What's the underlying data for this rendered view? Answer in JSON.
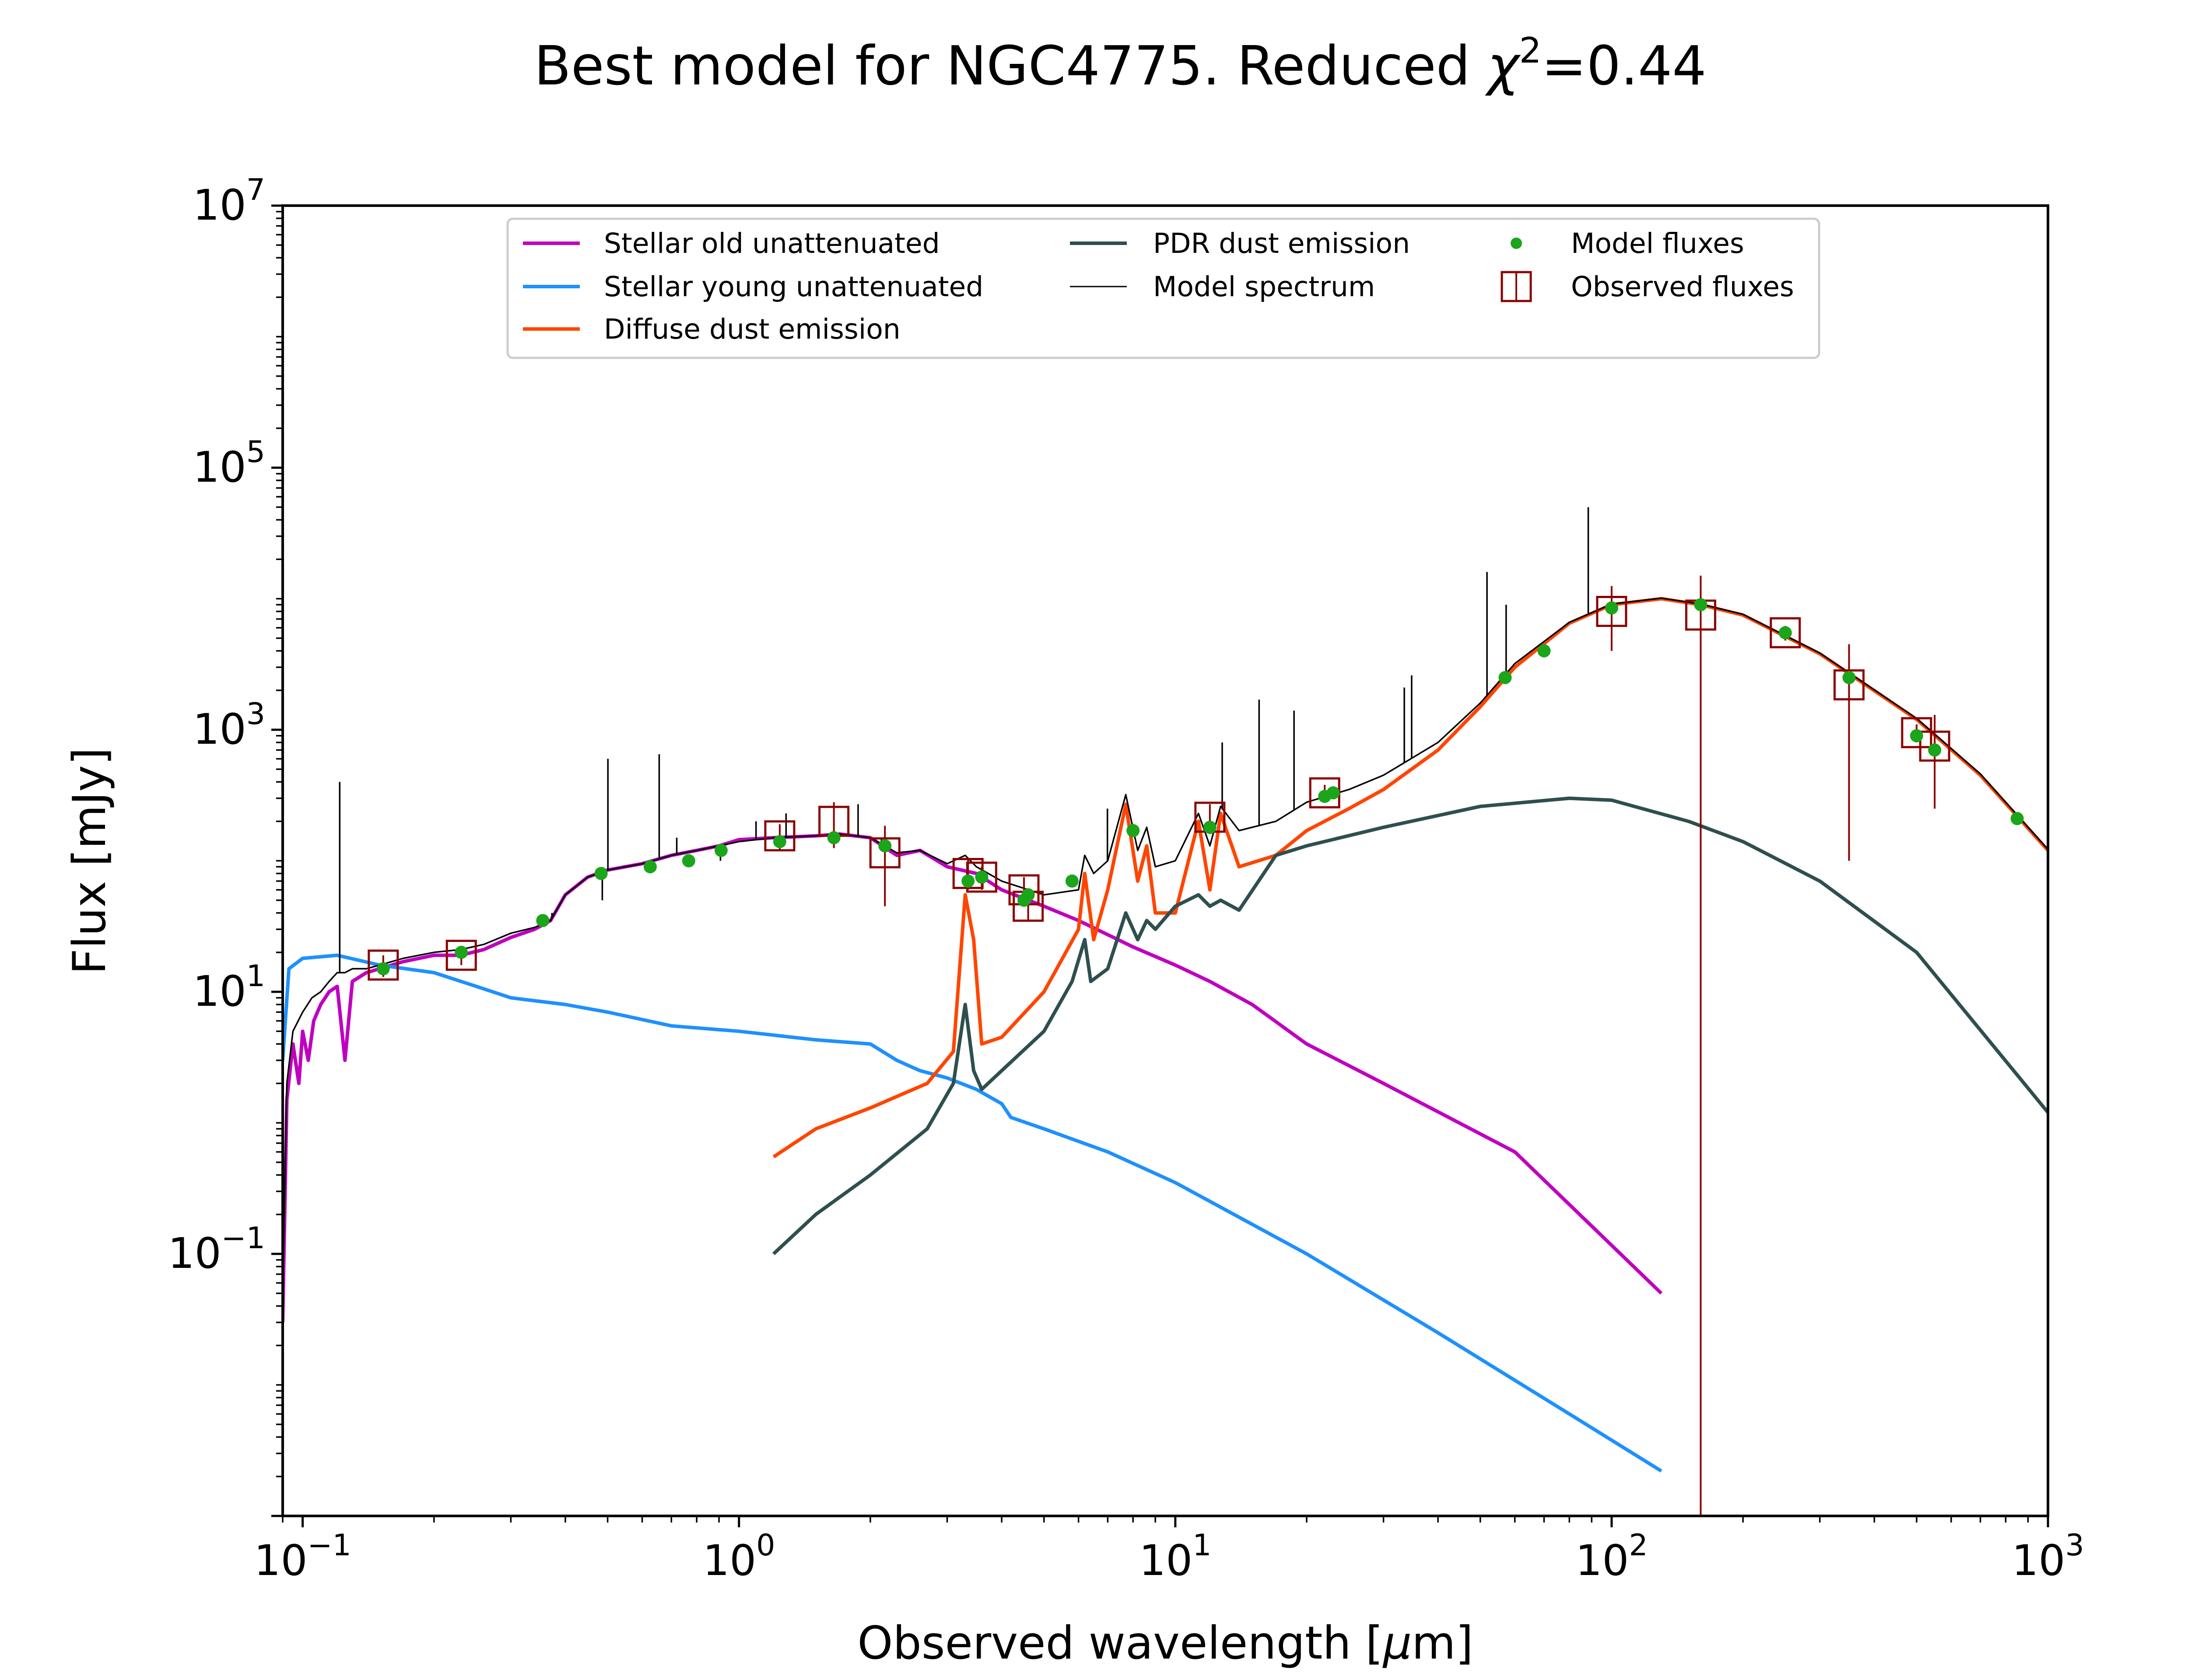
{
  "chart_data": {
    "type": "line",
    "title_main": "Best model for NGC4775. Reduced ",
    "title_symbol": "χ",
    "title_exp": "2",
    "title_value": "=0.44",
    "xlabel_pre": "Observed wavelength [",
    "xlabel_mu": "μ",
    "xlabel_post": "m]",
    "ylabel": "Flux [mJy]",
    "x_scale": "log",
    "y_scale": "log",
    "xlim": [
      0.09,
      1000
    ],
    "ylim": [
      0.001,
      10000000
    ],
    "x_ticks": [
      {
        "value": 0.1,
        "base": "10",
        "exp": "−1"
      },
      {
        "value": 1,
        "base": "10",
        "exp": "0"
      },
      {
        "value": 10,
        "base": "10",
        "exp": "1"
      },
      {
        "value": 100,
        "base": "10",
        "exp": "2"
      },
      {
        "value": 1000,
        "base": "10",
        "exp": "3"
      }
    ],
    "y_ticks": [
      {
        "value": 0.1,
        "base": "10",
        "exp": "−1"
      },
      {
        "value": 10,
        "base": "10",
        "exp": "1"
      },
      {
        "value": 1000,
        "base": "10",
        "exp": "3"
      },
      {
        "value": 100000,
        "base": "10",
        "exp": "5"
      },
      {
        "value": 10000000,
        "base": "10",
        "exp": "7"
      }
    ],
    "grid": false,
    "legend_position": "upper-center",
    "legend": [
      {
        "label": "Stellar old unattenuated",
        "kind": "line",
        "color": "#bf00bf"
      },
      {
        "label": "Stellar young unattenuated",
        "kind": "line",
        "color": "#1e90ff"
      },
      {
        "label": "Diffuse dust emission",
        "kind": "line",
        "color": "#ff4500"
      },
      {
        "label": "PDR dust emission",
        "kind": "line",
        "color": "#2f4f4f"
      },
      {
        "label": "Model spectrum",
        "kind": "thinline",
        "color": "#000000"
      },
      {
        "label": "Model fluxes",
        "kind": "dot",
        "color": "#1aa51a"
      },
      {
        "label": "Observed fluxes",
        "kind": "square",
        "color": "#8b0000"
      }
    ],
    "series": [
      {
        "name": "Stellar old unattenuated",
        "color": "#bf00bf",
        "points": [
          [
            0.09,
            0.03
          ],
          [
            0.092,
            1.5
          ],
          [
            0.095,
            4
          ],
          [
            0.098,
            2
          ],
          [
            0.1,
            5
          ],
          [
            0.103,
            3
          ],
          [
            0.106,
            6
          ],
          [
            0.11,
            8
          ],
          [
            0.115,
            10
          ],
          [
            0.12,
            11
          ],
          [
            0.125,
            3
          ],
          [
            0.13,
            12
          ],
          [
            0.14,
            14
          ],
          [
            0.15,
            15
          ],
          [
            0.17,
            17
          ],
          [
            0.2,
            19
          ],
          [
            0.23,
            19
          ],
          [
            0.26,
            21
          ],
          [
            0.3,
            26
          ],
          [
            0.34,
            30
          ],
          [
            0.37,
            35
          ],
          [
            0.4,
            55
          ],
          [
            0.45,
            75
          ],
          [
            0.5,
            85
          ],
          [
            0.6,
            95
          ],
          [
            0.7,
            110
          ],
          [
            0.8,
            120
          ],
          [
            0.9,
            130
          ],
          [
            1.0,
            145
          ],
          [
            1.2,
            150
          ],
          [
            1.5,
            155
          ],
          [
            1.7,
            160
          ],
          [
            2.0,
            150
          ],
          [
            2.3,
            110
          ],
          [
            2.6,
            120
          ],
          [
            3.0,
            90
          ],
          [
            3.5,
            80
          ],
          [
            4.0,
            60
          ],
          [
            5.0,
            45
          ],
          [
            6.0,
            35
          ],
          [
            8.0,
            22
          ],
          [
            10.0,
            16
          ],
          [
            12.0,
            12
          ],
          [
            15.0,
            8
          ],
          [
            20.0,
            4
          ],
          [
            30.0,
            2
          ],
          [
            60.0,
            0.6
          ],
          [
            130.0,
            0.05
          ]
        ]
      },
      {
        "name": "Stellar young unattenuated",
        "color": "#1e90ff",
        "points": [
          [
            0.09,
            3
          ],
          [
            0.093,
            15
          ],
          [
            0.1,
            18
          ],
          [
            0.12,
            19
          ],
          [
            0.15,
            16
          ],
          [
            0.2,
            14
          ],
          [
            0.25,
            11
          ],
          [
            0.3,
            9
          ],
          [
            0.4,
            8
          ],
          [
            0.5,
            7
          ],
          [
            0.7,
            5.5
          ],
          [
            1.0,
            5
          ],
          [
            1.5,
            4.3
          ],
          [
            2.0,
            4
          ],
          [
            2.3,
            3
          ],
          [
            2.6,
            2.5
          ],
          [
            3.0,
            2.2
          ],
          [
            3.5,
            1.8
          ],
          [
            4.0,
            1.4
          ],
          [
            4.2,
            1.1
          ],
          [
            5.0,
            0.9
          ],
          [
            7.0,
            0.6
          ],
          [
            10.0,
            0.35
          ],
          [
            20.0,
            0.1
          ],
          [
            40.0,
            0.025
          ],
          [
            80.0,
            0.006
          ],
          [
            130.0,
            0.0022
          ]
        ]
      },
      {
        "name": "Diffuse dust emission",
        "color": "#ff4500",
        "points": [
          [
            1.2,
            0.55
          ],
          [
            1.5,
            0.9
          ],
          [
            2.0,
            1.3
          ],
          [
            2.7,
            2
          ],
          [
            3.1,
            3.5
          ],
          [
            3.3,
            55
          ],
          [
            3.45,
            25
          ],
          [
            3.6,
            4
          ],
          [
            4.0,
            4.5
          ],
          [
            5.0,
            10
          ],
          [
            6.0,
            30
          ],
          [
            6.2,
            80
          ],
          [
            6.5,
            25
          ],
          [
            7.0,
            60
          ],
          [
            7.7,
            270
          ],
          [
            8.2,
            70
          ],
          [
            8.6,
            130
          ],
          [
            9.0,
            40
          ],
          [
            10.0,
            40
          ],
          [
            11.3,
            200
          ],
          [
            12.0,
            60
          ],
          [
            12.7,
            230
          ],
          [
            14.0,
            90
          ],
          [
            17.0,
            110
          ],
          [
            20.0,
            170
          ],
          [
            25.0,
            250
          ],
          [
            30.0,
            350
          ],
          [
            40.0,
            700
          ],
          [
            50.0,
            1500
          ],
          [
            60.0,
            3000
          ],
          [
            80.0,
            6500
          ],
          [
            100.0,
            9000
          ],
          [
            130.0,
            10000
          ],
          [
            160.0,
            9000
          ],
          [
            200.0,
            7500
          ],
          [
            300.0,
            3800
          ],
          [
            500.0,
            1200
          ],
          [
            700.0,
            450
          ],
          [
            1000.0,
            120
          ]
        ]
      },
      {
        "name": "PDR dust emission",
        "color": "#2f4f4f",
        "points": [
          [
            1.2,
            0.1
          ],
          [
            1.5,
            0.2
          ],
          [
            2.0,
            0.4
          ],
          [
            2.7,
            0.9
          ],
          [
            3.1,
            2
          ],
          [
            3.3,
            8
          ],
          [
            3.45,
            2.5
          ],
          [
            3.6,
            1.8
          ],
          [
            4.0,
            2.5
          ],
          [
            5.0,
            5
          ],
          [
            5.8,
            12
          ],
          [
            6.2,
            25
          ],
          [
            6.4,
            12
          ],
          [
            7.0,
            15
          ],
          [
            7.7,
            40
          ],
          [
            8.2,
            25
          ],
          [
            8.6,
            35
          ],
          [
            9.0,
            30
          ],
          [
            10.0,
            45
          ],
          [
            11.3,
            55
          ],
          [
            12.0,
            45
          ],
          [
            12.7,
            50
          ],
          [
            14.0,
            42
          ],
          [
            17.0,
            110
          ],
          [
            20.0,
            130
          ],
          [
            30.0,
            180
          ],
          [
            50.0,
            260
          ],
          [
            80.0,
            300
          ],
          [
            100.0,
            290
          ],
          [
            150.0,
            200
          ],
          [
            200.0,
            140
          ],
          [
            300.0,
            70
          ],
          [
            500.0,
            20
          ],
          [
            1000.0,
            1.2
          ]
        ]
      },
      {
        "name": "Model spectrum",
        "color": "#000000",
        "points": [
          [
            0.09,
            0.05
          ],
          [
            0.092,
            2
          ],
          [
            0.095,
            5
          ],
          [
            0.1,
            7
          ],
          [
            0.105,
            9
          ],
          [
            0.11,
            10
          ],
          [
            0.115,
            12
          ],
          [
            0.12,
            14
          ],
          [
            0.123,
            14
          ],
          [
            0.125,
            14
          ],
          [
            0.13,
            15
          ],
          [
            0.14,
            15
          ],
          [
            0.15,
            16
          ],
          [
            0.17,
            18
          ],
          [
            0.2,
            20
          ],
          [
            0.23,
            21
          ],
          [
            0.26,
            23
          ],
          [
            0.3,
            28
          ],
          [
            0.34,
            31
          ],
          [
            0.37,
            35
          ],
          [
            0.4,
            55
          ],
          [
            0.45,
            75
          ],
          [
            0.5,
            85
          ],
          [
            0.6,
            95
          ],
          [
            0.7,
            110
          ],
          [
            0.8,
            120
          ],
          [
            0.9,
            130
          ],
          [
            1.0,
            140
          ],
          [
            1.2,
            150
          ],
          [
            1.5,
            155
          ],
          [
            1.7,
            160
          ],
          [
            2.0,
            150
          ],
          [
            2.3,
            115
          ],
          [
            2.6,
            120
          ],
          [
            3.0,
            95
          ],
          [
            3.3,
            110
          ],
          [
            3.5,
            90
          ],
          [
            4.0,
            70
          ],
          [
            5.0,
            55
          ],
          [
            6.0,
            60
          ],
          [
            6.2,
            110
          ],
          [
            6.5,
            80
          ],
          [
            7.0,
            100
          ],
          [
            7.7,
            320
          ],
          [
            8.2,
            120
          ],
          [
            8.6,
            180
          ],
          [
            9.0,
            90
          ],
          [
            10.0,
            100
          ],
          [
            11.3,
            230
          ],
          [
            12.0,
            130
          ],
          [
            12.7,
            260
          ],
          [
            14.0,
            170
          ],
          [
            17.0,
            200
          ],
          [
            20.0,
            280
          ],
          [
            25.0,
            350
          ],
          [
            30.0,
            450
          ],
          [
            40.0,
            800
          ],
          [
            50.0,
            1600
          ],
          [
            60.0,
            3200
          ],
          [
            80.0,
            6600
          ],
          [
            100.0,
            9100
          ],
          [
            130.0,
            10100
          ],
          [
            160.0,
            9100
          ],
          [
            200.0,
            7600
          ],
          [
            300.0,
            3850
          ],
          [
            500.0,
            1220
          ],
          [
            700.0,
            460
          ],
          [
            1000.0,
            122
          ]
        ]
      }
    ],
    "emission_lines": [
      [
        0.1216,
        400
      ],
      [
        0.3727,
        40
      ],
      [
        0.4861,
        50
      ],
      [
        0.5007,
        600
      ],
      [
        0.6563,
        650
      ],
      [
        0.72,
        150
      ],
      [
        0.9069,
        100
      ],
      [
        1.0941,
        200
      ],
      [
        1.282,
        230
      ],
      [
        1.875,
        270
      ],
      [
        2.12,
        150
      ],
      [
        6.99,
        250
      ],
      [
        12.81,
        800
      ],
      [
        15.56,
        1700
      ],
      [
        18.71,
        1400
      ],
      [
        33.48,
        2100
      ],
      [
        34.81,
        2600
      ],
      [
        51.8,
        16000
      ],
      [
        57.3,
        9000
      ],
      [
        88.4,
        50000
      ],
      [
        121.9,
        10000
      ],
      [
        157.7,
        9500
      ]
    ],
    "model_fluxes": [
      [
        0.153,
        15
      ],
      [
        0.231,
        20
      ],
      [
        0.355,
        35
      ],
      [
        0.483,
        80
      ],
      [
        0.626,
        90
      ],
      [
        0.767,
        100
      ],
      [
        0.91,
        120
      ],
      [
        1.24,
        140
      ],
      [
        1.65,
        150
      ],
      [
        2.16,
        130
      ],
      [
        3.35,
        70
      ],
      [
        3.6,
        75
      ],
      [
        4.5,
        50
      ],
      [
        4.6,
        55
      ],
      [
        5.8,
        70
      ],
      [
        8.0,
        170
      ],
      [
        12.0,
        180
      ],
      [
        22.0,
        310
      ],
      [
        23.0,
        330
      ],
      [
        57.0,
        2500
      ],
      [
        70.0,
        4000
      ],
      [
        100.0,
        8500
      ],
      [
        160.0,
        9000
      ],
      [
        250.0,
        5500
      ],
      [
        350.0,
        2500
      ],
      [
        500.0,
        900
      ],
      [
        550.0,
        700
      ],
      [
        850.0,
        210
      ]
    ],
    "observed_fluxes": [
      {
        "x": 0.153,
        "y": 16,
        "lo": 13,
        "hi": 19
      },
      {
        "x": 0.231,
        "y": 19,
        "lo": 16,
        "hi": 22
      },
      {
        "x": 1.24,
        "y": 155,
        "lo": 120,
        "hi": 190
      },
      {
        "x": 1.65,
        "y": 200,
        "lo": 125,
        "hi": 280
      },
      {
        "x": 2.16,
        "y": 115,
        "lo": 45,
        "hi": 185
      },
      {
        "x": 3.35,
        "y": 80,
        "lo": 60,
        "hi": 105
      },
      {
        "x": 3.6,
        "y": 75,
        "lo": 60,
        "hi": 90
      },
      {
        "x": 4.5,
        "y": 60,
        "lo": 45,
        "hi": 75
      },
      {
        "x": 4.6,
        "y": 45,
        "lo": 35,
        "hi": 55
      },
      {
        "x": 12.0,
        "y": 215,
        "lo": 160,
        "hi": 270
      },
      {
        "x": 22.0,
        "y": 330,
        "lo": 280,
        "hi": 380
      },
      {
        "x": 100.0,
        "y": 8000,
        "lo": 4000,
        "hi": 12500
      },
      {
        "x": 160.0,
        "y": 7500,
        "lo": 0.001,
        "hi": 15000
      },
      {
        "x": 250.0,
        "y": 5500,
        "lo": 4800,
        "hi": 6200
      },
      {
        "x": 350.0,
        "y": 2200,
        "lo": 100,
        "hi": 4500
      },
      {
        "x": 500.0,
        "y": 950,
        "lo": 800,
        "hi": 1100
      },
      {
        "x": 550.0,
        "y": 750,
        "lo": 250,
        "hi": 1300
      }
    ]
  }
}
